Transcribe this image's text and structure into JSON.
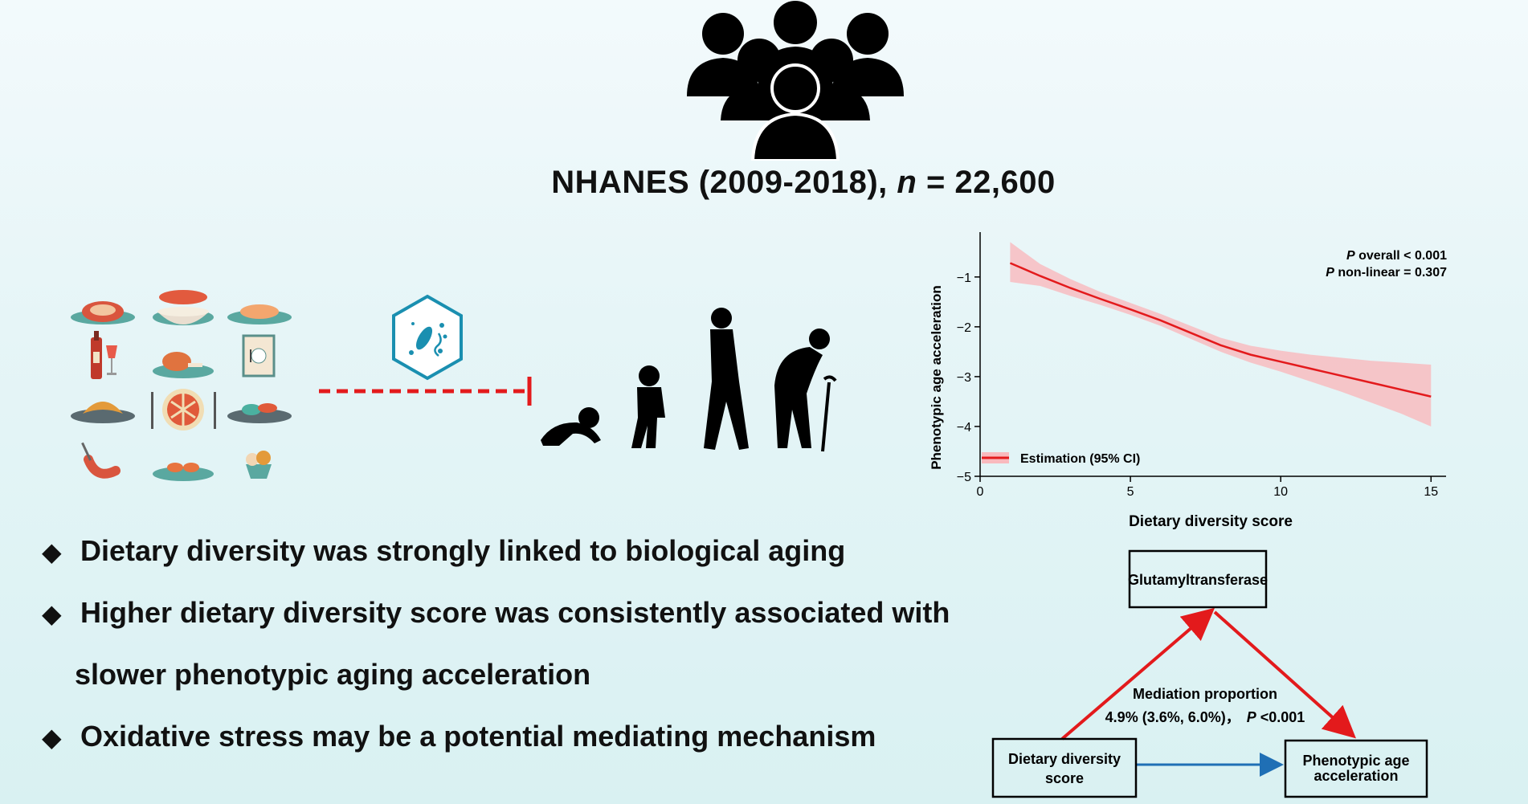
{
  "study": {
    "title_prefix": "NHANES (2009-2018), ",
    "title_n": "n",
    "title_suffix": " = 22,600"
  },
  "icons": {
    "people": "crowd-icon",
    "bacteria": "bacteria-hexagon-icon",
    "aging": "human-aging-stages-icon",
    "foods": [
      "steak-icon",
      "soup-pot-icon",
      "salmon-icon",
      "wine-icon",
      "chicken-leg-icon",
      "menu-card-icon",
      "croissant-icon",
      "pie-icon",
      "vegetable-dish-icon",
      "sausage-icon",
      "shrimp-dish-icon",
      "dessert-cup-icon"
    ]
  },
  "colors": {
    "accent_red": "#e31a1c",
    "ci_fill": "#f9b9bd",
    "arrow_blue": "#1f6fb5",
    "bacteria_teal": "#1a8fb0"
  },
  "bullets": [
    {
      "marker": "◆",
      "text": "Dietary diversity was strongly linked to biological aging"
    },
    {
      "marker": "◆",
      "text": "Higher dietary diversity score was consistently associated with",
      "continuation": "slower phenotypic aging acceleration"
    },
    {
      "marker": "◆",
      "text": "Oxidative stress may be a potential mediating mechanism"
    }
  ],
  "chart_data": {
    "type": "line",
    "xlabel": "Dietary diversity score",
    "ylabel": "Phenotypic age acceleration",
    "xlim": [
      0,
      15.5
    ],
    "ylim": [
      -5,
      -0.1
    ],
    "xticks": [
      0,
      5,
      10,
      15
    ],
    "yticks": [
      -1,
      -2,
      -3,
      -4,
      -5
    ],
    "xtick_labels": [
      "0",
      "5",
      "10",
      "15"
    ],
    "ytick_labels": [
      "−1",
      "−2",
      "−3",
      "−4",
      "−5"
    ],
    "grid": false,
    "legend": {
      "position": "bottom-left",
      "entry": "Estimation (95% CI)"
    },
    "annotations": {
      "p_overall_label": "P",
      "p_overall_text": " overall < 0.001",
      "p_nonlinear_label": "P",
      "p_nonlinear_text": " non-linear = 0.307"
    },
    "series": [
      {
        "x": [
          1,
          2,
          3,
          4,
          5,
          6,
          7,
          8,
          9,
          10,
          11,
          12,
          13,
          14,
          15
        ],
        "y": [
          -0.72,
          -0.98,
          -1.22,
          -1.44,
          -1.65,
          -1.87,
          -2.12,
          -2.37,
          -2.56,
          -2.7,
          -2.84,
          -2.98,
          -3.12,
          -3.26,
          -3.4
        ],
        "lower": [
          -1.1,
          -1.18,
          -1.38,
          -1.56,
          -1.76,
          -1.98,
          -2.24,
          -2.5,
          -2.72,
          -2.9,
          -3.1,
          -3.3,
          -3.52,
          -3.74,
          -4.0
        ],
        "upper": [
          -0.3,
          -0.74,
          -1.04,
          -1.3,
          -1.52,
          -1.74,
          -1.98,
          -2.22,
          -2.38,
          -2.48,
          -2.56,
          -2.62,
          -2.68,
          -2.72,
          -2.76
        ]
      }
    ]
  },
  "mediation": {
    "mediator": "Glutamyltransferase",
    "exposure_line1": "Dietary diversity",
    "exposure_line2": "score",
    "outcome_line1": "Phenotypic age",
    "outcome_line2": "acceleration",
    "proportion_title": "Mediation proportion",
    "proportion_value": "4.9% (3.6%, 6.0%)，",
    "p_label": "P",
    "p_value": " <0.001"
  }
}
